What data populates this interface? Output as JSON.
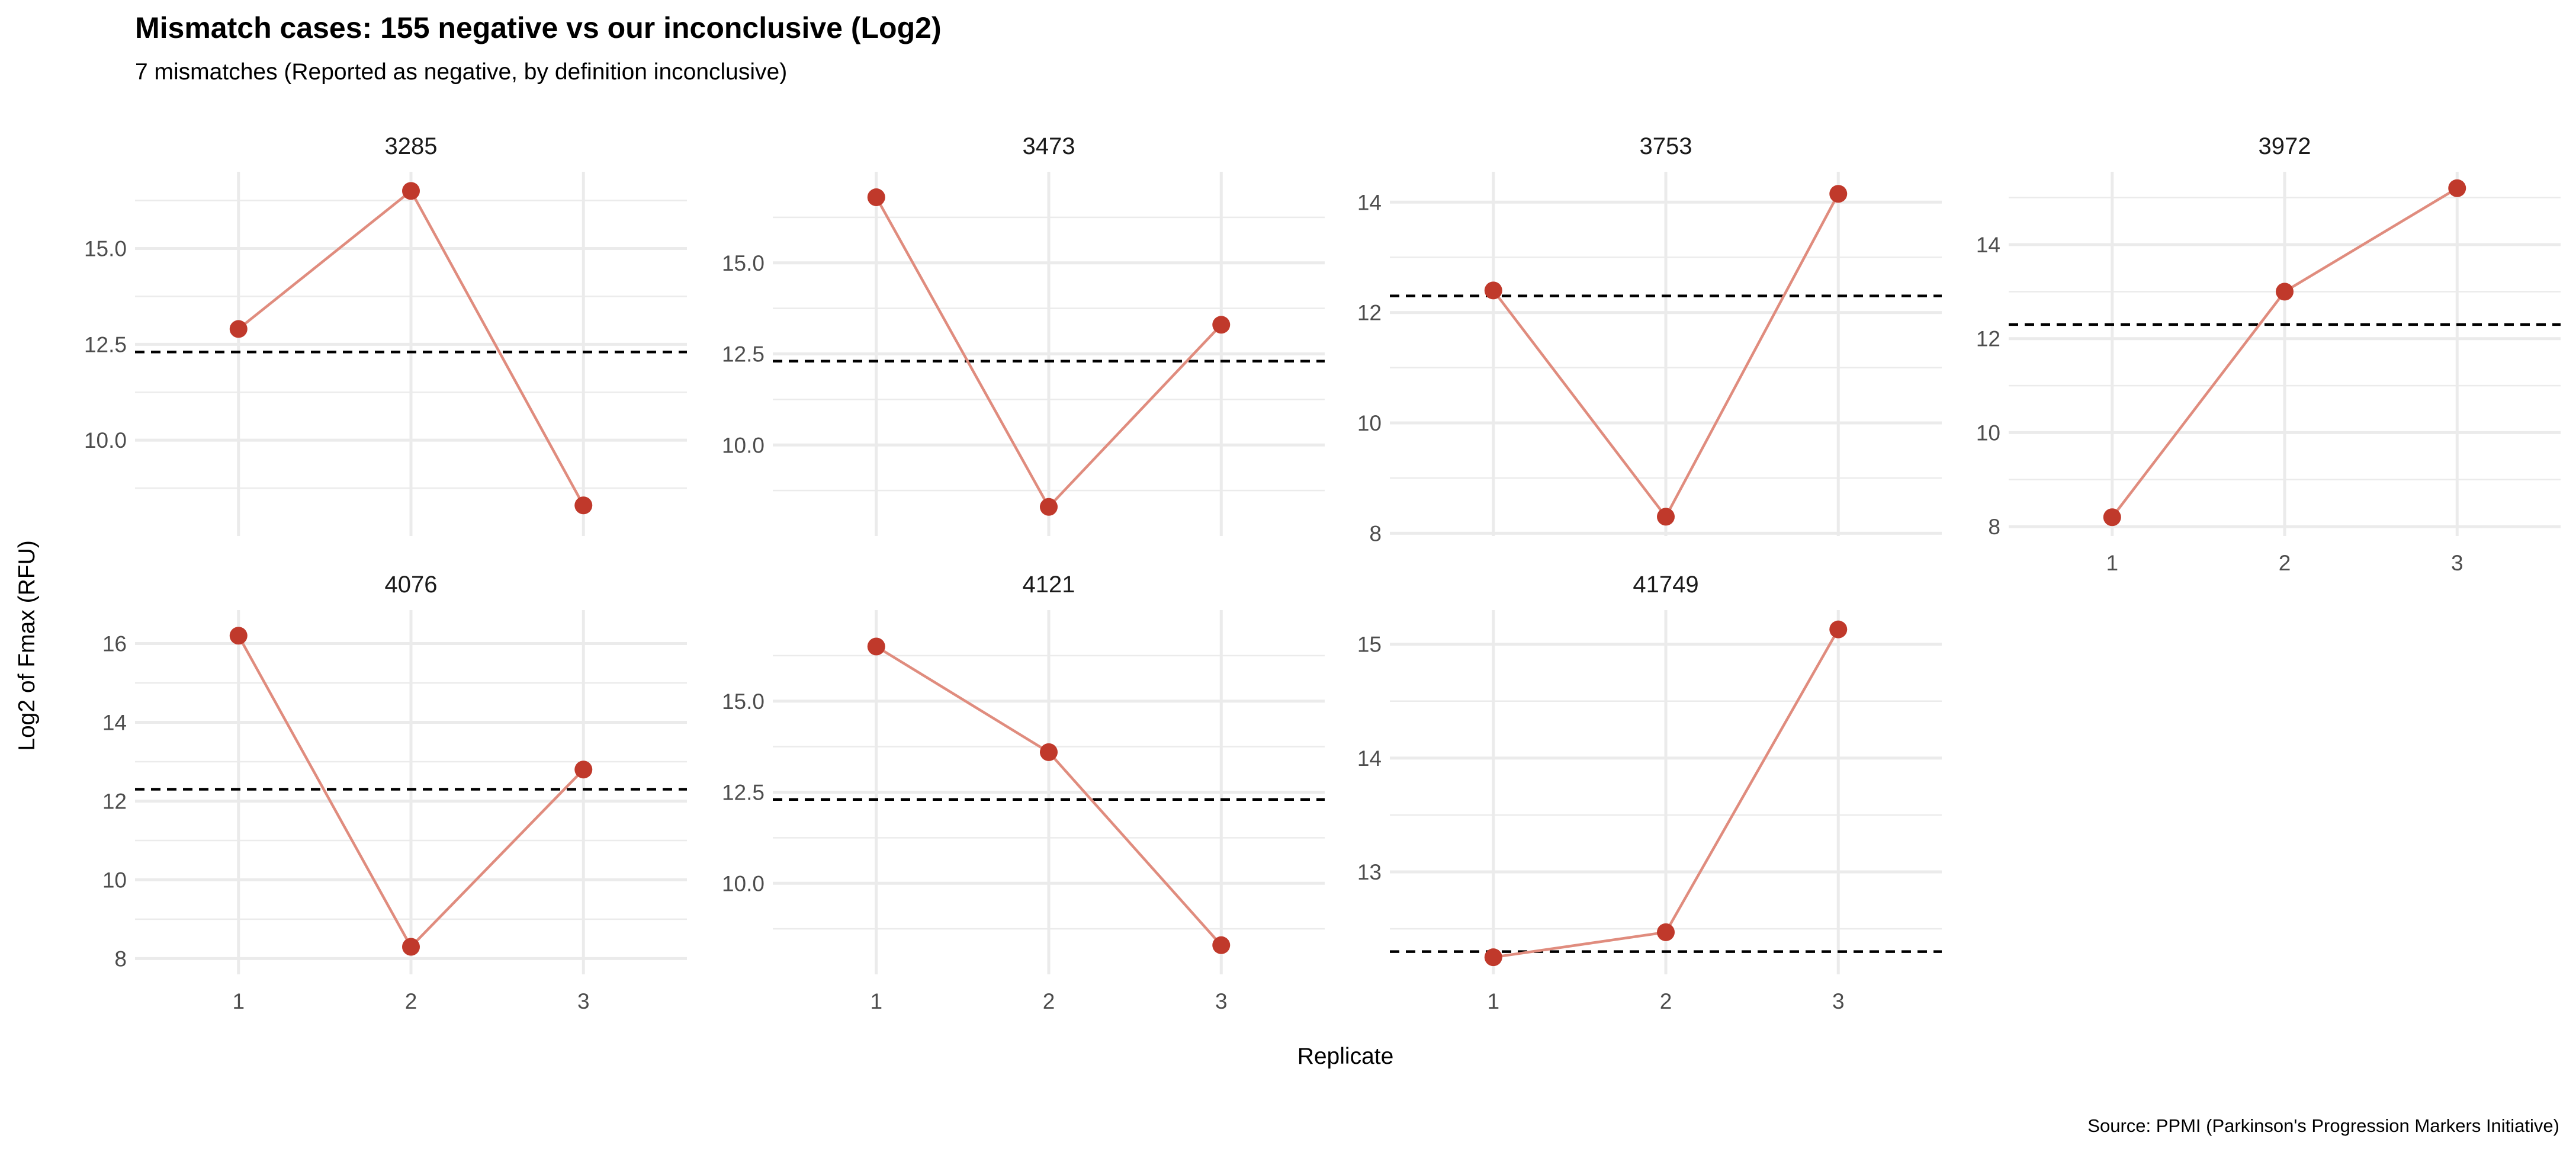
{
  "chart_data": {
    "type": "line",
    "title": "Mismatch cases: 155 negative vs our inconclusive (Log2)",
    "subtitle": "7 mismatches (Reported as negative, by definition inconclusive)",
    "caption": "Source: PPMI (Parkinson's Progression Markers Initiative)",
    "xlabel": "Replicate",
    "ylabel": "Log2 of Fmax (RFU)",
    "x_ticks": [
      "1",
      "2",
      "3"
    ],
    "threshold": 12.3,
    "threshold_style": "dashed",
    "grid": true,
    "colors": {
      "line": "#e08c7e",
      "point": "#c0392b",
      "threshold": "#000000",
      "grid": "#ebebeb"
    },
    "facets": [
      {
        "name": "3285",
        "x": [
          1,
          2,
          3
        ],
        "values": [
          12.9,
          16.5,
          8.3
        ],
        "ylim": [
          7.5,
          17.0
        ],
        "y_ticks": [
          10.0,
          12.5,
          15.0
        ],
        "tick_format": "0.0"
      },
      {
        "name": "3473",
        "x": [
          1,
          2,
          3
        ],
        "values": [
          16.8,
          8.3,
          13.3
        ],
        "ylim": [
          7.5,
          17.5
        ],
        "y_ticks": [
          10.0,
          12.5,
          15.0
        ],
        "tick_format": "0.0"
      },
      {
        "name": "3753",
        "x": [
          1,
          2,
          3
        ],
        "values": [
          12.4,
          8.3,
          14.15
        ],
        "ylim": [
          7.95,
          14.55
        ],
        "y_ticks": [
          8,
          10,
          12,
          14
        ],
        "tick_format": "0"
      },
      {
        "name": "3972",
        "x": [
          1,
          2,
          3
        ],
        "values": [
          8.2,
          13.0,
          15.2
        ],
        "ylim": [
          7.8,
          15.55
        ],
        "y_ticks": [
          8,
          10,
          12,
          14
        ],
        "tick_format": "0"
      },
      {
        "name": "4076",
        "x": [
          1,
          2,
          3
        ],
        "values": [
          16.2,
          8.3,
          12.8
        ],
        "ylim": [
          7.6,
          16.85
        ],
        "y_ticks": [
          8,
          10,
          12,
          14,
          16
        ],
        "tick_format": "0"
      },
      {
        "name": "4121",
        "x": [
          1,
          2,
          3
        ],
        "values": [
          16.5,
          13.6,
          8.3
        ],
        "ylim": [
          7.5,
          17.5
        ],
        "y_ticks": [
          10.0,
          12.5,
          15.0
        ],
        "tick_format": "0.0"
      },
      {
        "name": "41749",
        "x": [
          1,
          2,
          3
        ],
        "values": [
          12.25,
          12.47,
          15.13
        ],
        "ylim": [
          12.1,
          15.3
        ],
        "y_ticks": [
          13,
          14,
          15
        ],
        "tick_format": "0"
      }
    ]
  }
}
